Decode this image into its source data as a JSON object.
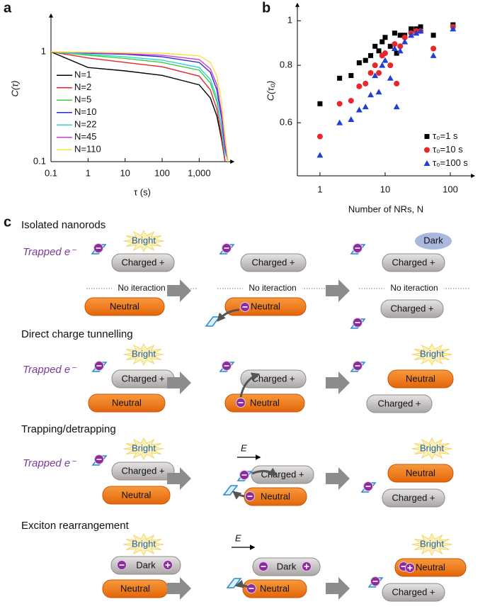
{
  "chart_data": [
    {
      "type": "line",
      "label": "a",
      "ylabel": "C(τ)",
      "xlabel": "τ (s)",
      "xlog": true,
      "ylog": true,
      "xlim": [
        0.1,
        8500
      ],
      "ylim": [
        0.1,
        2.2
      ],
      "xticks": [
        0.1,
        1,
        10,
        100,
        {
          "value": 1000,
          "label": "1,000"
        }
      ],
      "yticks": [
        0.1,
        1
      ],
      "legend": "lower left",
      "x": [
        0.1,
        1,
        10,
        100,
        1000,
        2000,
        3000,
        4000,
        5000,
        6000
      ],
      "series": [
        {
          "name": "N=1",
          "color": "#000000",
          "values": [
            1,
            0.72,
            0.67,
            0.61,
            0.5,
            0.38,
            0.26,
            0.16,
            0.1,
            null
          ]
        },
        {
          "name": "N=2",
          "color": "#e8262b",
          "values": [
            1,
            0.88,
            0.8,
            0.73,
            0.6,
            0.45,
            0.3,
            0.17,
            0.1,
            null
          ]
        },
        {
          "name": "N=5",
          "color": "#3ccf3c",
          "values": [
            1,
            0.93,
            0.87,
            0.8,
            0.68,
            0.52,
            0.35,
            0.2,
            0.11,
            null
          ]
        },
        {
          "name": "N=10",
          "color": "#2a2ad0",
          "values": [
            1,
            0.97,
            0.95,
            0.9,
            0.8,
            0.65,
            0.45,
            0.25,
            0.13,
            0.1
          ]
        },
        {
          "name": "N=22",
          "color": "#2fd6d0",
          "values": [
            1,
            0.95,
            0.9,
            0.84,
            0.72,
            0.56,
            0.38,
            0.2,
            0.11,
            null
          ]
        },
        {
          "name": "N=45",
          "color": "#d63ad6",
          "values": [
            1,
            0.98,
            0.96,
            0.93,
            0.85,
            0.7,
            0.5,
            0.28,
            0.14,
            0.1
          ]
        },
        {
          "name": "N=110",
          "color": "#f4e33a",
          "values": [
            1,
            0.99,
            0.98,
            0.97,
            0.92,
            0.8,
            0.6,
            0.35,
            0.17,
            0.1
          ]
        }
      ]
    },
    {
      "type": "scatter",
      "label": "b",
      "ylabel": "C(τ₀)",
      "xlabel": "Number of NRs, N",
      "xlog": true,
      "ylog": true,
      "xlim": [
        0.45,
        234
      ],
      "ylim": [
        0.46,
        1.09
      ],
      "xticks": [
        1,
        10,
        100
      ],
      "yticks": [
        0.6,
        0.8,
        1
      ],
      "legend": "lower right",
      "x": [
        1,
        2,
        3,
        4,
        5,
        6,
        7,
        8,
        9,
        10,
        12,
        14,
        15,
        17,
        20,
        25,
        30,
        35,
        55,
        110
      ],
      "series": [
        {
          "name": "τ₀=1 s",
          "color": "#000000",
          "marker": "square",
          "values": [
            0.66,
            0.75,
            0.76,
            0.81,
            0.82,
            0.84,
            0.88,
            0.86,
            0.9,
            0.92,
            0.88,
            0.94,
            0.85,
            0.93,
            0.93,
            0.96,
            0.96,
            0.97,
            0.93,
            0.98
          ]
        },
        {
          "name": "τ₀=10 s",
          "color": "#e8262b",
          "marker": "circle",
          "values": [
            0.56,
            0.66,
            0.67,
            0.72,
            0.73,
            0.77,
            0.8,
            0.77,
            0.84,
            0.85,
            0.8,
            0.89,
            0.73,
            0.88,
            0.92,
            0.94,
            0.95,
            0.95,
            0.87,
            0.97
          ]
        },
        {
          "name": "τ₀=100 s",
          "color": "#1f3fd6",
          "marker": "triangle",
          "values": [
            0.51,
            0.6,
            0.61,
            0.64,
            0.65,
            0.69,
            0.76,
            0.7,
            0.8,
            0.82,
            0.75,
            0.87,
            0.65,
            0.86,
            0.9,
            0.93,
            0.94,
            0.95,
            0.84,
            0.96
          ]
        }
      ]
    }
  ],
  "diagram": {
    "label": "c",
    "rows": [
      {
        "title": "Isolated nanorods",
        "trapped": "Trapped e⁻",
        "panels": [
          [
            "Bright",
            "Charged +",
            "No iteraction",
            "Neutral"
          ],
          [
            "Charged +",
            "No iteraction",
            "Neutral"
          ],
          [
            "Dark",
            "Charged +",
            "No iteraction",
            "Charged +"
          ]
        ]
      },
      {
        "title": "Direct charge tunnelling",
        "trapped": "Trapped e⁻",
        "panels": [
          [
            "Bright",
            "Charged +",
            "Neutral"
          ],
          [
            "Charged +",
            "Neutral"
          ],
          [
            "Bright",
            "Neutral",
            "Charged +"
          ]
        ]
      },
      {
        "title": "Trapping/detrapping",
        "trapped": "Trapped e⁻",
        "panels": [
          [
            "Bright",
            "Charged +",
            "Neutral"
          ],
          [
            "E",
            "Charged +",
            "Neutral"
          ],
          [
            "Bright",
            "Neutral",
            "Charged +"
          ]
        ]
      },
      {
        "title": "Exciton rearrangement",
        "panels": [
          [
            "Bright",
            "Dark",
            "Neutral"
          ],
          [
            "E",
            "Dark",
            "Neutral"
          ],
          [
            "Bright",
            "Neutral",
            "Charged +"
          ]
        ]
      }
    ]
  }
}
